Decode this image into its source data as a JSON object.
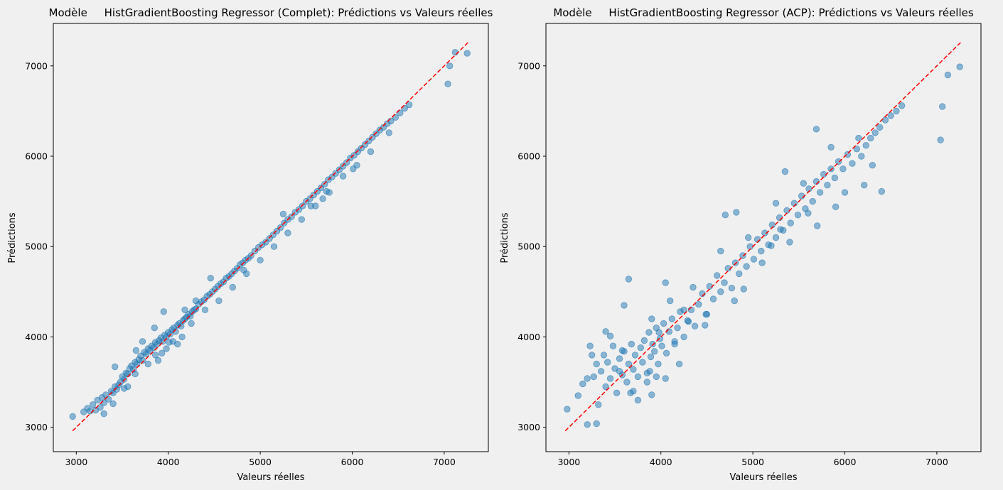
{
  "figure": {
    "background": "#f0f0f0"
  },
  "chart_data": [
    {
      "type": "scatter",
      "title": "Modèle     HistGradientBoosting Regressor (Complet): Prédictions vs Valeurs réelles",
      "xlabel": "Valeurs réelles",
      "ylabel": "Prédictions",
      "xlim": [
        2750,
        7480
      ],
      "ylim": [
        2730,
        7470
      ],
      "xticks": [
        3000,
        4000,
        5000,
        6000,
        7000
      ],
      "yticks": [
        3000,
        4000,
        5000,
        6000,
        7000
      ],
      "grid": false,
      "point_color": "#1f77b4",
      "point_alpha": 0.5,
      "reference_line": {
        "from": [
          2960,
          2960
        ],
        "to": [
          7260,
          7260
        ],
        "color": "#ff0000",
        "style": "dashed"
      },
      "x": [
        2960,
        3080,
        3120,
        3150,
        3180,
        3210,
        3230,
        3260,
        3280,
        3300,
        3320,
        3350,
        3380,
        3400,
        3420,
        3440,
        3460,
        3480,
        3500,
        3520,
        3540,
        3560,
        3580,
        3600,
        3620,
        3640,
        3660,
        3680,
        3700,
        3720,
        3740,
        3760,
        3780,
        3800,
        3820,
        3840,
        3860,
        3880,
        3900,
        3920,
        3940,
        3960,
        3980,
        4000,
        4020,
        4040,
        4060,
        4080,
        4100,
        4120,
        4140,
        4160,
        4180,
        4200,
        4220,
        4240,
        4260,
        4280,
        4300,
        4330,
        4360,
        4390,
        4420,
        4450,
        4480,
        4510,
        4540,
        4570,
        4600,
        4630,
        4660,
        4690,
        4720,
        4750,
        4780,
        4810,
        4840,
        4870,
        4900,
        4940,
        4980,
        5020,
        5060,
        5100,
        5140,
        5180,
        5220,
        5260,
        5300,
        5340,
        5380,
        5420,
        5460,
        5500,
        5540,
        5580,
        5620,
        5660,
        5700,
        5740,
        5780,
        5820,
        5860,
        5900,
        5940,
        5980,
        6020,
        6060,
        6100,
        6140,
        6180,
        6220,
        6260,
        6300,
        6340,
        6380,
        6420,
        6470,
        6520,
        6570,
        6620,
        7040,
        7060,
        7120,
        7250,
        3300,
        3400,
        3520,
        3640,
        3780,
        3860,
        3930,
        3980,
        4050,
        4150,
        4250,
        4400,
        4550,
        4700,
        4850,
        5000,
        5150,
        5300,
        5450,
        5600,
        5750,
        5900,
        6050,
        6200,
        6400,
        3650,
        3720,
        3850,
        3950,
        4100,
        4300,
        5550,
        5680,
        3420,
        3560,
        3890,
        4010,
        4180,
        4460,
        4820,
        5250,
        5720,
        6010
      ],
      "y": [
        3120,
        3170,
        3210,
        3180,
        3250,
        3190,
        3300,
        3220,
        3330,
        3270,
        3360,
        3310,
        3400,
        3380,
        3450,
        3420,
        3470,
        3500,
        3560,
        3530,
        3600,
        3590,
        3650,
        3680,
        3640,
        3720,
        3700,
        3750,
        3790,
        3740,
        3830,
        3810,
        3870,
        3850,
        3900,
        3880,
        3940,
        3920,
        3960,
        3990,
        3950,
        4020,
        4000,
        4050,
        4030,
        4080,
        4100,
        4060,
        4130,
        4150,
        4120,
        4180,
        4200,
        4220,
        4250,
        4230,
        4280,
        4300,
        4310,
        4360,
        4390,
        4410,
        4450,
        4470,
        4500,
        4530,
        4560,
        4590,
        4610,
        4650,
        4670,
        4700,
        4730,
        4760,
        4800,
        4820,
        4850,
        4870,
        4900,
        4950,
        4990,
        5020,
        5050,
        5090,
        5130,
        5170,
        5210,
        5260,
        5300,
        5330,
        5380,
        5410,
        5450,
        5500,
        5530,
        5570,
        5610,
        5650,
        5690,
        5740,
        5770,
        5810,
        5850,
        5890,
        5930,
        5980,
        6010,
        6050,
        6090,
        6130,
        6170,
        6210,
        6250,
        6290,
        6320,
        6360,
        6390,
        6430,
        6480,
        6530,
        6570,
        6800,
        7000,
        7150,
        7140,
        3150,
        3260,
        3430,
        3590,
        3700,
        3800,
        3820,
        3870,
        3950,
        4000,
        4150,
        4300,
        4400,
        4550,
        4700,
        4850,
        5000,
        5150,
        5300,
        5450,
        5600,
        5780,
        5900,
        6050,
        6260,
        3850,
        3950,
        4100,
        4280,
        3920,
        4400,
        5450,
        5530,
        3670,
        3450,
        3740,
        3940,
        4300,
        4650,
        4740,
        5360,
        5610,
        5860
      ]
    },
    {
      "type": "scatter",
      "title": "Modèle     HistGradientBoosting Regressor (ACP): Prédictions vs Valeurs réelles",
      "xlabel": "Valeurs réelles",
      "ylabel": "Prédictions",
      "xlim": [
        2750,
        7480
      ],
      "ylim": [
        2730,
        7470
      ],
      "xticks": [
        3000,
        4000,
        5000,
        6000,
        7000
      ],
      "yticks": [
        3000,
        4000,
        5000,
        6000,
        7000
      ],
      "grid": false,
      "point_color": "#1f77b4",
      "point_alpha": 0.5,
      "reference_line": {
        "from": [
          2960,
          2960
        ],
        "to": [
          7260,
          7260
        ],
        "color": "#ff0000",
        "style": "dashed"
      },
      "x": [
        2980,
        3100,
        3150,
        3200,
        3230,
        3270,
        3300,
        3320,
        3350,
        3380,
        3400,
        3420,
        3450,
        3480,
        3500,
        3520,
        3550,
        3580,
        3600,
        3630,
        3650,
        3680,
        3700,
        3720,
        3750,
        3780,
        3800,
        3820,
        3850,
        3870,
        3890,
        3910,
        3930,
        3950,
        3970,
        3990,
        4010,
        4030,
        4060,
        4090,
        4120,
        4150,
        4180,
        4210,
        4250,
        4290,
        4330,
        4370,
        4410,
        4450,
        4490,
        4530,
        4570,
        4610,
        4650,
        4690,
        4730,
        4770,
        4810,
        4850,
        4890,
        4930,
        4970,
        5010,
        5050,
        5090,
        5130,
        5170,
        5210,
        5250,
        5290,
        5330,
        5370,
        5410,
        5450,
        5490,
        5530,
        5570,
        5610,
        5650,
        5690,
        5730,
        5770,
        5810,
        5850,
        5890,
        5930,
        5980,
        6030,
        6080,
        6130,
        6180,
        6230,
        6280,
        6330,
        6380,
        6440,
        6500,
        6560,
        6620,
        7040,
        7060,
        7120,
        7250,
        3200,
        3300,
        3450,
        3550,
        3650,
        3700,
        3900,
        3850,
        3950,
        4100,
        4200,
        4350,
        4500,
        4650,
        4800,
        4950,
        5100,
        5250,
        5400,
        5550,
        5700,
        5850,
        6000,
        6150,
        6300,
        3250,
        3400,
        3600,
        3750,
        3880,
        3980,
        4050,
        4150,
        4300,
        4700,
        4900,
        5200,
        5350,
        5600,
        5900,
        6400,
        3670,
        3580,
        3900,
        4050,
        4250,
        4480,
        4820,
        5300,
        5690,
        6210
      ],
      "y": [
        3200,
        3350,
        3480,
        3030,
        3900,
        3560,
        3700,
        3250,
        3620,
        3800,
        3450,
        3720,
        3540,
        3900,
        3650,
        3380,
        3760,
        3580,
        3840,
        3500,
        3700,
        3920,
        3640,
        3800,
        3560,
        3880,
        3720,
        3960,
        3600,
        4050,
        3780,
        3920,
        3840,
        4100,
        3700,
        3980,
        3900,
        4150,
        3820,
        4060,
        4200,
        3950,
        4100,
        4280,
        4000,
        4180,
        4300,
        4120,
        4360,
        4480,
        4250,
        4560,
        4420,
        4680,
        4500,
        4600,
        4760,
        4540,
        4820,
        4700,
        4900,
        4780,
        5000,
        4860,
        5080,
        4950,
        5150,
        5020,
        5240,
        5100,
        5320,
        5180,
        5400,
        5260,
        5480,
        5350,
        5560,
        5420,
        5640,
        5500,
        5720,
        5600,
        5800,
        5680,
        5860,
        5760,
        5940,
        5860,
        6020,
        5920,
        6080,
        6000,
        6120,
        6200,
        6260,
        6320,
        6400,
        6450,
        6500,
        6560,
        6180,
        6550,
        6900,
        6990,
        3540,
        3040,
        4010,
        3620,
        4640,
        3400,
        4200,
        3500,
        3560,
        4400,
        3700,
        4550,
        4250,
        4950,
        4400,
        5100,
        4820,
        5480,
        5050,
        5700,
        5230,
        6100,
        5600,
        6200,
        5900,
        3800,
        4060,
        4350,
        3300,
        3620,
        4050,
        3540,
        3920,
        4170,
        5350,
        4530,
        5010,
        5830,
        5370,
        5440,
        5610,
        3380,
        3850,
        3360,
        4600,
        4300,
        4130,
        5380,
        5190,
        6300,
        5680
      ]
    }
  ]
}
